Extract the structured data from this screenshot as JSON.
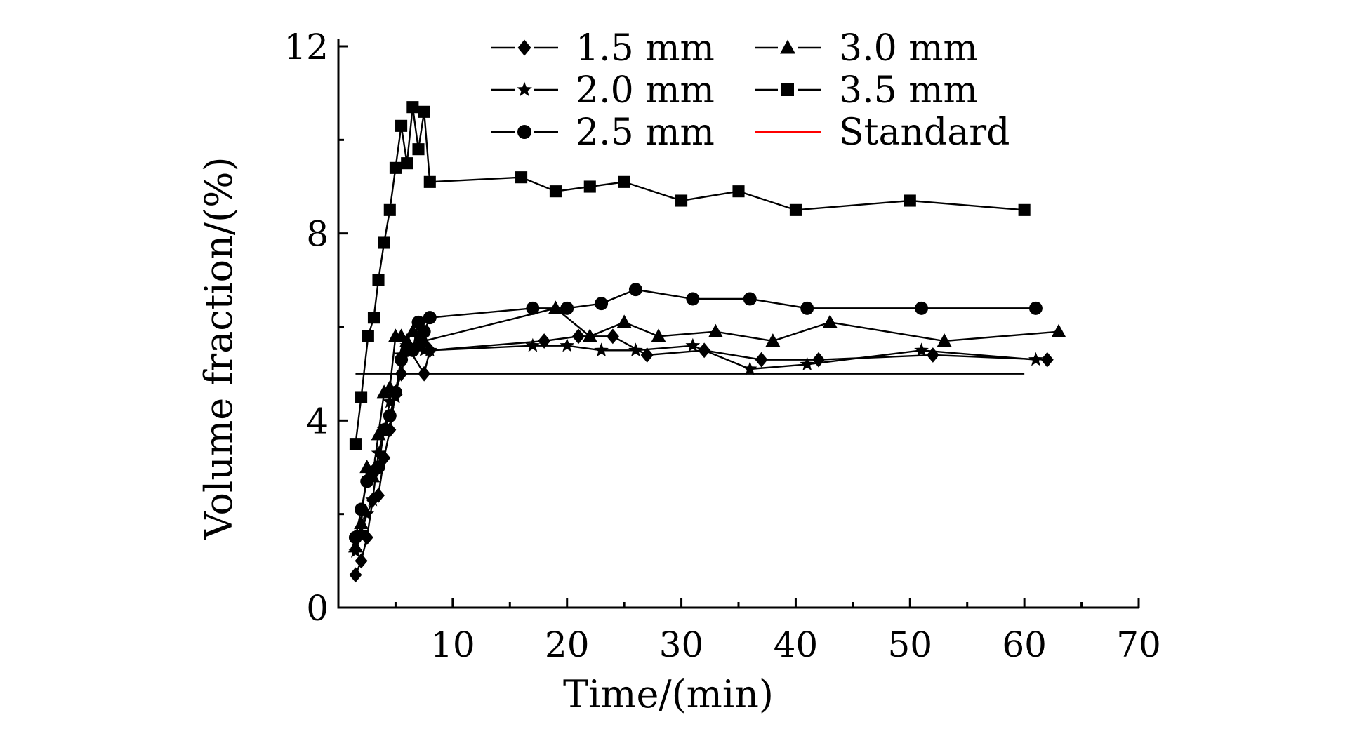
{
  "chart_data": {
    "type": "line",
    "title": "",
    "xlabel": "Time/(min)",
    "ylabel": "Volume fraction/(%)",
    "xlim": [
      0,
      70
    ],
    "ylim": [
      0,
      12
    ],
    "xticks": [
      10,
      20,
      30,
      40,
      50,
      60,
      70
    ],
    "xtick_labels": [
      "10",
      "20",
      "30",
      "40",
      "50",
      "60",
      "70"
    ],
    "yticks": [
      0,
      4,
      8,
      12
    ],
    "ytick_labels": [
      "0",
      "4",
      "8",
      "12"
    ],
    "grid": false,
    "legend_position": "top",
    "series": [
      {
        "name": "1.5 mm",
        "marker": "diamond",
        "color": "#000000",
        "x": [
          1.5,
          2,
          2.5,
          3,
          3.5,
          4,
          4.5,
          5,
          5.5,
          6,
          7.5,
          8,
          18,
          21,
          24,
          27,
          32,
          37,
          42,
          52,
          62
        ],
        "y": [
          0.7,
          1.0,
          1.5,
          2.3,
          2.4,
          3.2,
          3.8,
          4.6,
          5.0,
          5.6,
          5.0,
          5.5,
          5.7,
          5.8,
          5.8,
          5.4,
          5.5,
          5.3,
          5.3,
          5.4,
          5.3
        ]
      },
      {
        "name": "2.0 mm",
        "marker": "star",
        "color": "#000000",
        "x": [
          1.5,
          2,
          2.5,
          3,
          3.5,
          4,
          4.5,
          5,
          5.5,
          6,
          6.5,
          7,
          7.5,
          8,
          17,
          20,
          23,
          26,
          31,
          36,
          41,
          51,
          61
        ],
        "y": [
          1.2,
          1.6,
          2.0,
          2.3,
          3.3,
          3.8,
          4.4,
          4.5,
          5.4,
          5.6,
          5.5,
          5.8,
          5.5,
          5.5,
          5.6,
          5.6,
          5.5,
          5.5,
          5.6,
          5.1,
          5.2,
          5.5,
          5.3
        ]
      },
      {
        "name": "2.5 mm",
        "marker": "circle",
        "color": "#000000",
        "x": [
          1.5,
          2,
          2.5,
          3,
          3.5,
          4,
          4.5,
          5,
          5.5,
          6,
          6.5,
          7,
          7.5,
          8,
          17,
          20,
          23,
          26,
          31,
          36,
          41,
          51,
          61
        ],
        "y": [
          1.5,
          2.1,
          2.7,
          2.9,
          3.0,
          3.8,
          4.1,
          4.6,
          5.3,
          5.5,
          5.5,
          6.1,
          5.9,
          6.2,
          6.4,
          6.4,
          6.5,
          6.8,
          6.6,
          6.6,
          6.4,
          6.4,
          6.4
        ]
      },
      {
        "name": "3.0 mm",
        "marker": "triangle",
        "color": "#000000",
        "x": [
          1.5,
          2,
          2.5,
          3,
          3.5,
          4,
          4.5,
          5,
          5.5,
          6,
          6.5,
          7,
          7.5,
          19,
          22,
          25,
          28,
          33,
          38,
          43,
          53,
          63
        ],
        "y": [
          1.3,
          1.8,
          3.0,
          2.8,
          3.7,
          4.6,
          4.7,
          5.8,
          5.8,
          5.7,
          5.9,
          5.6,
          5.7,
          6.4,
          5.8,
          6.1,
          5.8,
          5.9,
          5.7,
          6.1,
          5.7,
          5.9
        ]
      },
      {
        "name": "3.5 mm",
        "marker": "square",
        "color": "#000000",
        "x": [
          1.5,
          2,
          2.6,
          3.1,
          3.5,
          4,
          4.5,
          5,
          5.5,
          6,
          6.5,
          7,
          7.5,
          8,
          16,
          19,
          22,
          25,
          30,
          35,
          40,
          50,
          60
        ],
        "y": [
          3.5,
          4.5,
          5.8,
          6.2,
          7.0,
          7.8,
          8.5,
          9.4,
          10.3,
          9.5,
          10.7,
          9.8,
          10.6,
          9.1,
          9.2,
          8.9,
          9.0,
          9.1,
          8.7,
          8.9,
          8.5,
          8.7,
          8.5
        ]
      },
      {
        "name": "Standard",
        "marker": "none",
        "color": "#ff0000",
        "x": [
          1.5,
          60
        ],
        "y": [
          5.0,
          5.0
        ]
      }
    ]
  }
}
